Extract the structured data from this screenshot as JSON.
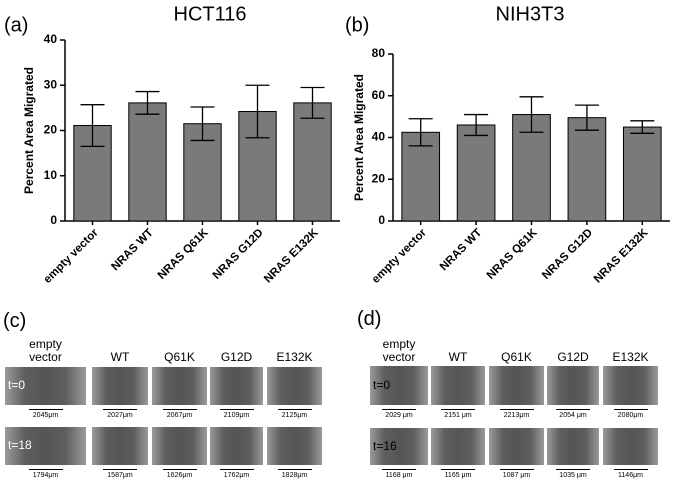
{
  "chart_data": [
    {
      "type": "bar",
      "panel_label": "(a)",
      "title": "HCT116",
      "y_label": "Percent Area Migrated",
      "categories": [
        "empty vector",
        "NRAS WT",
        "NRAS Q61K",
        "NRAS G12D",
        "NRAS E132K"
      ],
      "values": [
        21.1,
        26.1,
        21.5,
        24.2,
        26.1
      ],
      "errors": [
        4.6,
        2.5,
        3.7,
        5.8,
        3.4
      ],
      "color": "#7a7a7a",
      "ylim": [
        0,
        40
      ],
      "yticks": [
        0,
        10,
        20,
        30,
        40
      ]
    },
    {
      "type": "bar",
      "panel_label": "(b)",
      "title": "NIH3T3",
      "y_label": "Percent Area Migrated",
      "categories": [
        "empty vector",
        "NRAS WT",
        "NRAS Q61K",
        "NRAS G12D",
        "NRAS E132K"
      ],
      "values": [
        42.5,
        46,
        51,
        49.5,
        45
      ],
      "errors": [
        6.5,
        5,
        8.5,
        6,
        3
      ],
      "color": "#7a7a7a",
      "ylim": [
        0,
        80
      ],
      "yticks": [
        0,
        20,
        40,
        60,
        80
      ]
    }
  ],
  "image_panels": [
    {
      "panel_label": "(c)",
      "columns": [
        "empty vector",
        "WT",
        "Q61K",
        "G12D",
        "E132K"
      ],
      "rows": [
        {
          "label": "t=0",
          "scales": [
            "2045μm",
            "2027μm",
            "2067μm",
            "2109μm",
            "2125μm"
          ]
        },
        {
          "label": "t=18",
          "scales": [
            "1794μm",
            "1587μm",
            "1626μm",
            "1762μm",
            "1828μm"
          ]
        }
      ]
    },
    {
      "panel_label": "(d)",
      "columns": [
        "empty vector",
        "WT",
        "Q61K",
        "G12D",
        "E132K"
      ],
      "rows": [
        {
          "label": "t=0",
          "scales": [
            "2029 μm",
            "2151 μm",
            "2213μm",
            "2054 μm",
            "2080μm"
          ]
        },
        {
          "label": "t=16",
          "scales": [
            "1168 μm",
            "1165 μm",
            "1087 μm",
            "1035 μm",
            "1146μm"
          ]
        }
      ]
    }
  ]
}
